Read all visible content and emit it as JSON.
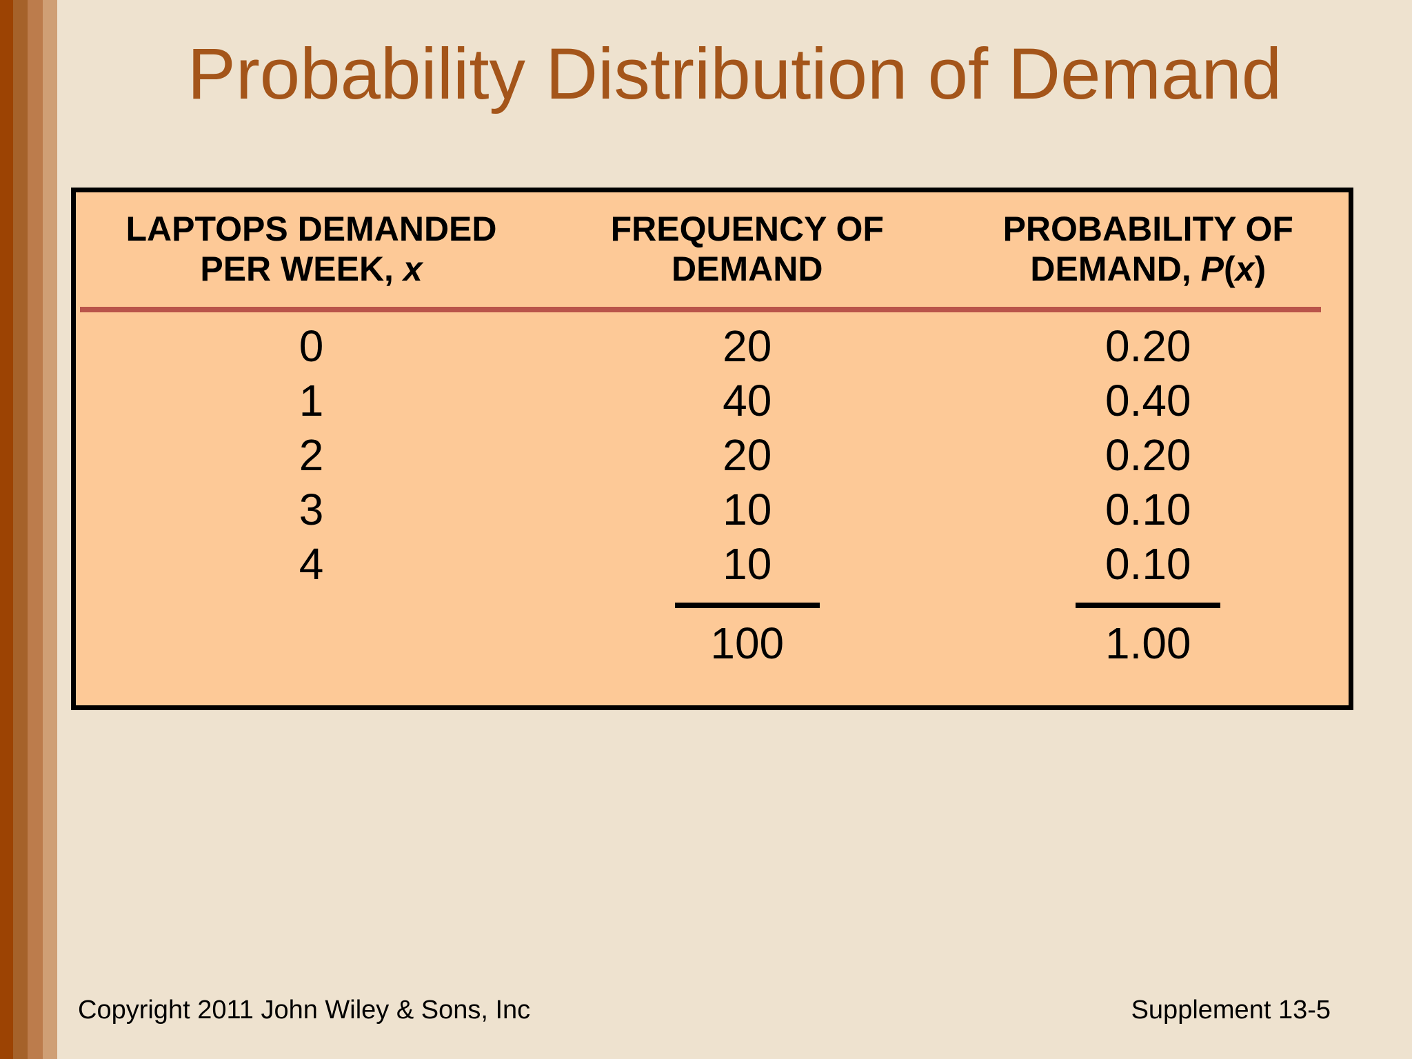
{
  "slide": {
    "title": "Probability Distribution of Demand",
    "footer_left": "Copyright 2011 John Wiley & Sons, Inc",
    "footer_right": "Supplement 13-5"
  },
  "colors": {
    "background": "#eee2cf",
    "title": "#a4551a",
    "table_fill": "#fdc997",
    "table_border": "#000000",
    "header_rule": "#b9544a",
    "total_rule": "#000000",
    "body_text": "#000000",
    "stripe_1": "#9c4303",
    "stripe_2": "#a5622a",
    "stripe_3": "#bc7c4c",
    "stripe_4": "#cf9f75"
  },
  "table": {
    "headers": {
      "laptops": {
        "line1": "LAPTOPS DEMANDED",
        "line2_prefix": "PER WEEK, ",
        "line2_var": "x"
      },
      "frequency": {
        "line1": "FREQUENCY OF",
        "line2": "DEMAND"
      },
      "probability": {
        "line1": "PROBABILITY OF",
        "line2_prefix": "DEMAND, ",
        "func": "P",
        "paren_open": "(",
        "arg": "x",
        "paren_close": ")"
      }
    },
    "rows": [
      {
        "x": "0",
        "frequency": "20",
        "probability": "0.20"
      },
      {
        "x": "1",
        "frequency": "40",
        "probability": "0.40"
      },
      {
        "x": "2",
        "frequency": "20",
        "probability": "0.20"
      },
      {
        "x": "3",
        "frequency": "10",
        "probability": "0.10"
      },
      {
        "x": "4",
        "frequency": "10",
        "probability": "0.10"
      }
    ],
    "totals": {
      "frequency": "100",
      "probability": "1.00"
    }
  }
}
